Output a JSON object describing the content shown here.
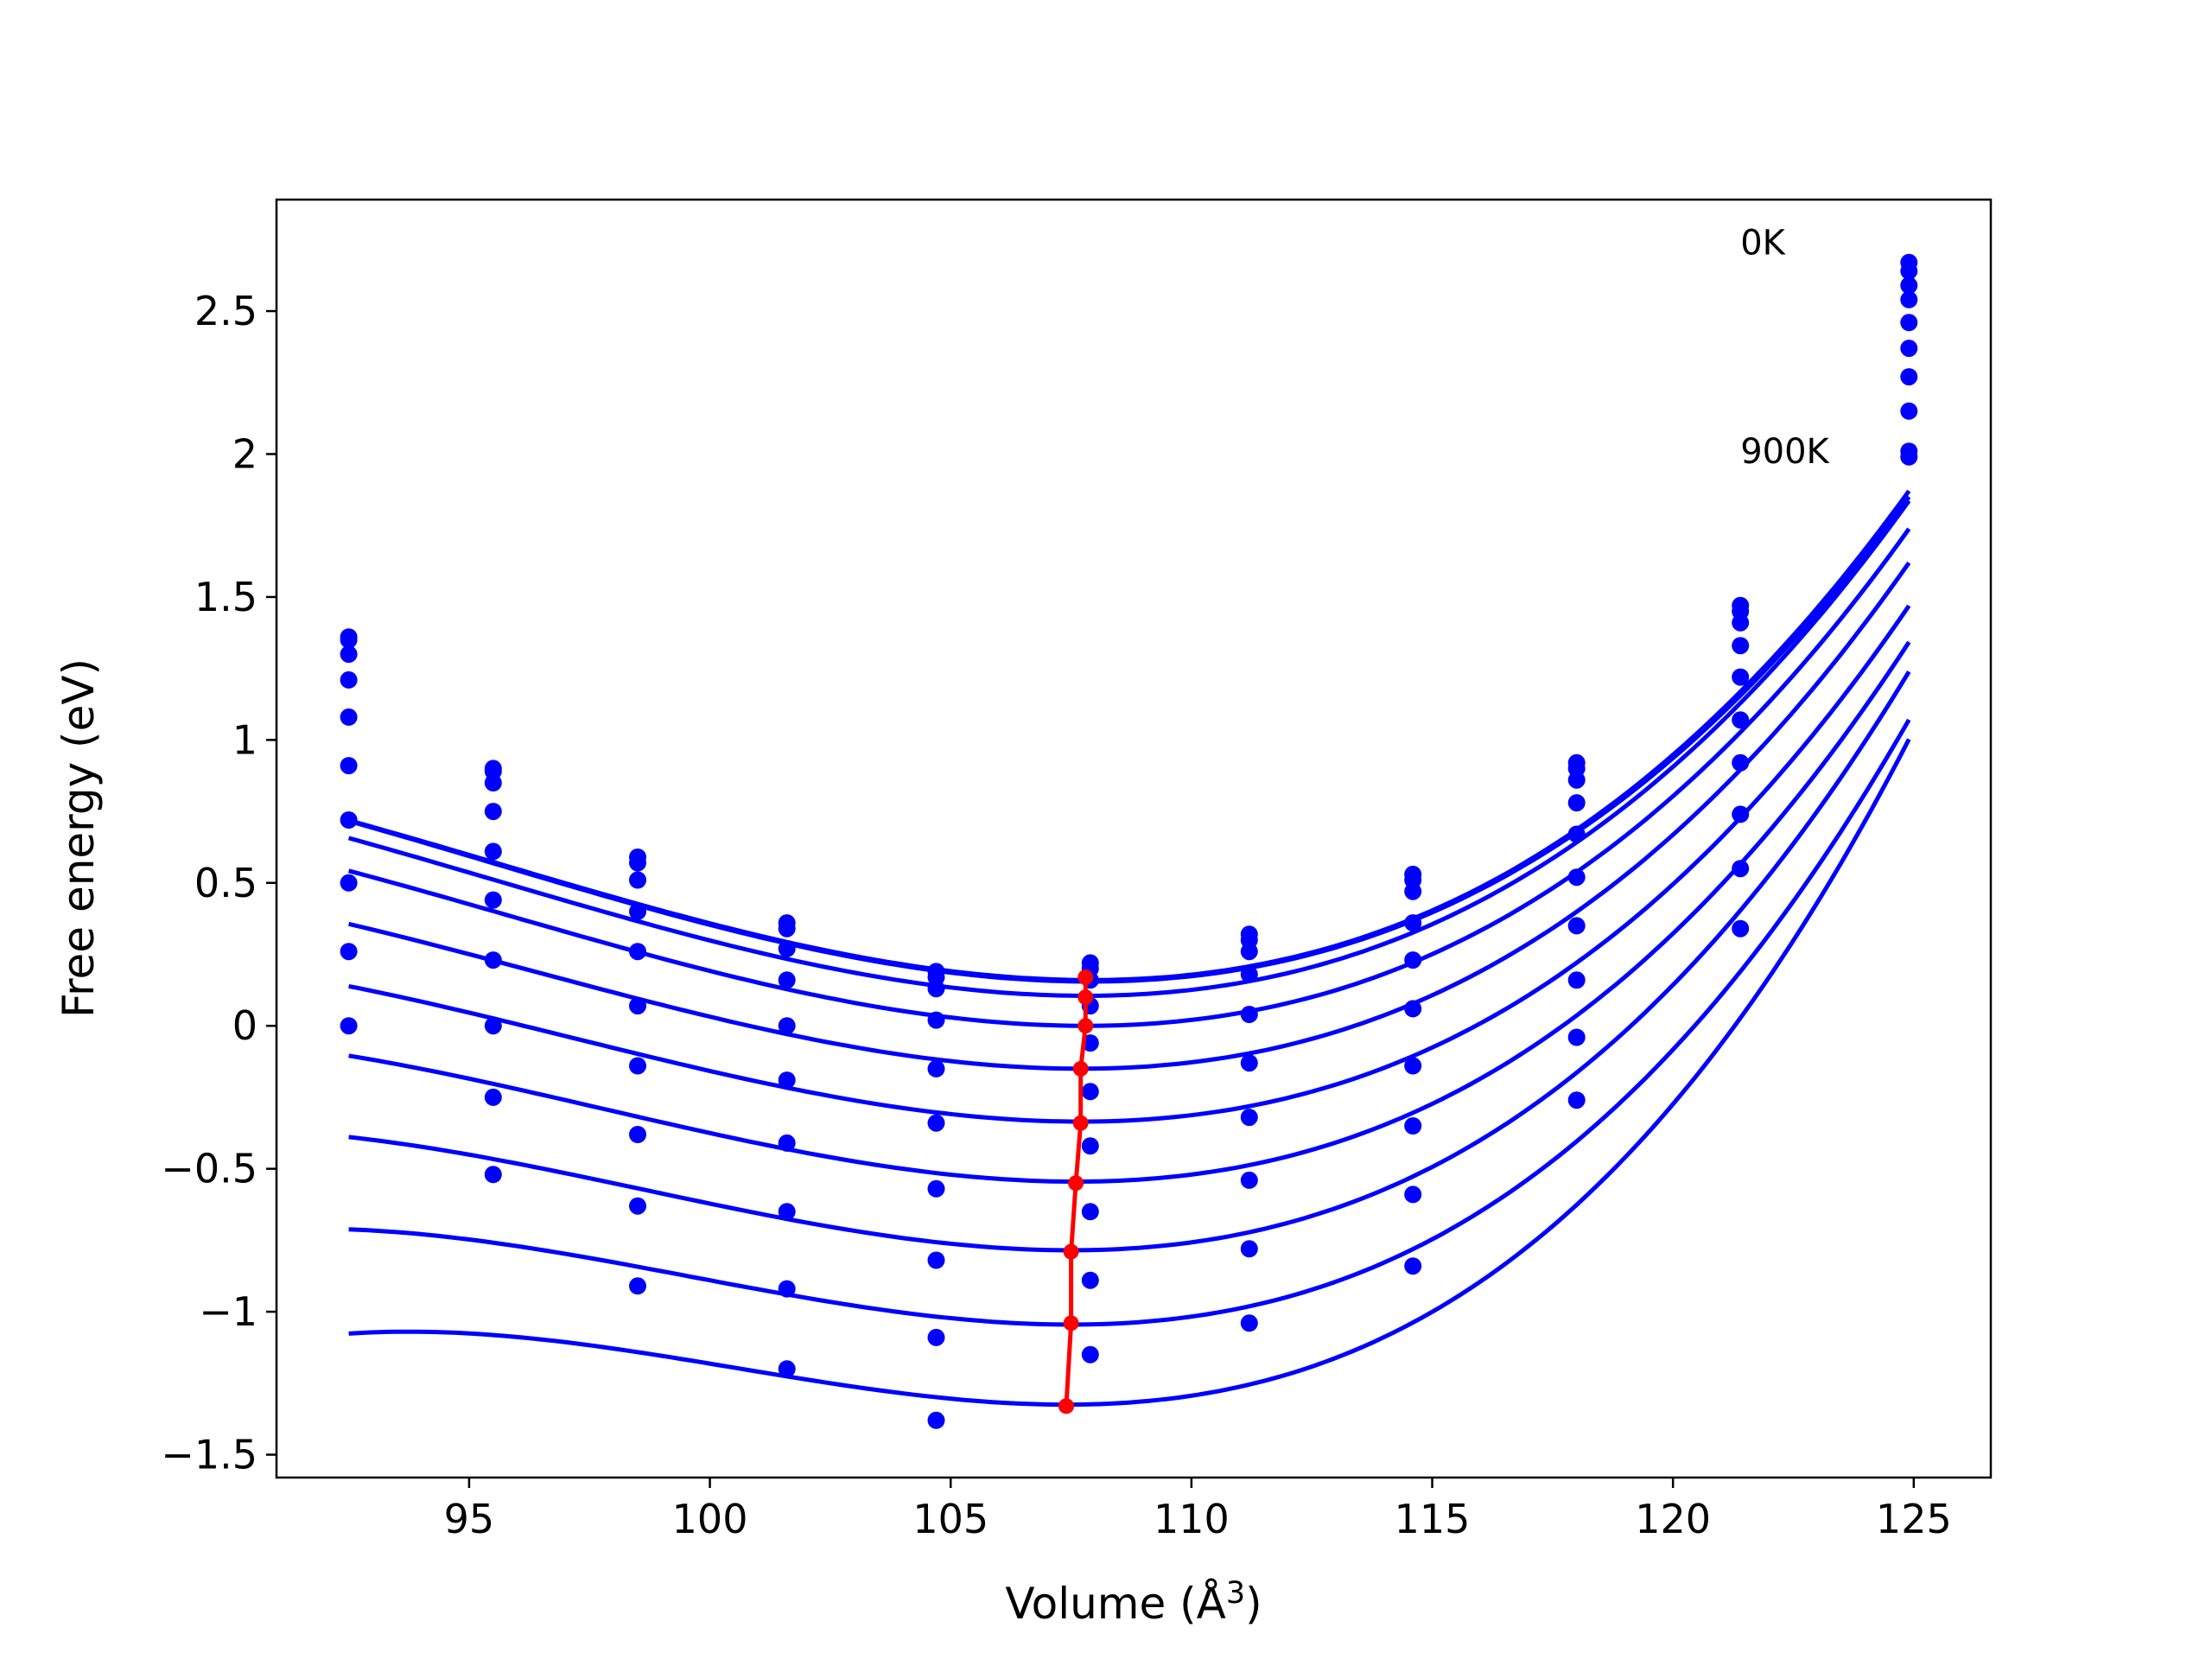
{
  "chart_data": {
    "type": "scatter",
    "title": "",
    "xlabel": "Volume (Å",
    "xlabel_sup": "3",
    "xlabel_close": ")",
    "ylabel": "Free energy (eV)",
    "xlim": [
      91.0,
      126.6
    ],
    "ylim": [
      -1.58,
      2.89
    ],
    "xticks": [
      95,
      100,
      105,
      110,
      115,
      120,
      125
    ],
    "yticks": [
      -1.5,
      -1.0,
      -0.5,
      0.0,
      0.5,
      1.0,
      1.5,
      2.0,
      2.5
    ],
    "grid": false,
    "colors": {
      "points": "#0000ff",
      "curves": "#0000ff",
      "minimum_path": "#ff0000"
    },
    "annotations": [
      {
        "text": "0K",
        "x": 121.4,
        "y": 2.74
      },
      {
        "text": "900K",
        "x": 121.4,
        "y": 2.01
      }
    ],
    "x": [
      92.5,
      95.5,
      98.5,
      101.6,
      104.7,
      107.9,
      111.2,
      114.6,
      118.0,
      121.4,
      124.9
    ],
    "series": [
      {
        "y": [
          1.36,
          0.9,
          0.59,
          0.36,
          0.19,
          0.22,
          0.32,
          0.53,
          0.92,
          1.47,
          2.67
        ]
      },
      {
        "y": [
          1.35,
          0.89,
          0.57,
          0.34,
          0.17,
          0.2,
          0.3,
          0.51,
          0.9,
          1.45,
          2.64
        ]
      },
      {
        "y": [
          1.3,
          0.85,
          0.51,
          0.27,
          0.13,
          0.16,
          0.26,
          0.47,
          0.86,
          1.41,
          2.59
        ]
      },
      {
        "y": [
          1.21,
          0.75,
          0.4,
          0.16,
          0.02,
          0.07,
          0.18,
          0.36,
          0.78,
          1.33,
          2.54
        ]
      },
      {
        "y": [
          1.08,
          0.61,
          0.26,
          0.0,
          -0.15,
          -0.06,
          0.04,
          0.23,
          0.67,
          1.22,
          2.46
        ]
      },
      {
        "y": [
          0.91,
          0.44,
          0.07,
          -0.19,
          -0.34,
          -0.23,
          -0.13,
          0.06,
          0.52,
          1.07,
          2.37
        ]
      },
      {
        "y": [
          0.72,
          0.23,
          -0.14,
          -0.41,
          -0.57,
          -0.42,
          -0.32,
          -0.14,
          0.35,
          0.92,
          2.27
        ]
      },
      {
        "y": [
          0.5,
          0.0,
          -0.38,
          -0.65,
          -0.82,
          -0.65,
          -0.54,
          -0.35,
          0.16,
          0.74,
          2.15
        ]
      },
      {
        "y": [
          0.26,
          -0.25,
          -0.63,
          -0.92,
          -1.09,
          -0.89,
          -0.78,
          -0.59,
          -0.04,
          0.55,
          2.01
        ]
      },
      {
        "y": [
          0.0,
          -0.52,
          -0.91,
          -1.2,
          -1.38,
          -1.15,
          -1.04,
          -0.84,
          -0.26,
          0.34,
          1.99
        ]
      }
    ],
    "fits": [
      {
        "v0": 107.9,
        "e0": 0.16,
        "a": 0.00405,
        "b": 0.00011,
        "xmax": 124.9
      },
      {
        "v0": 107.9,
        "e0": 0.155,
        "a": 0.00403,
        "b": 0.000108,
        "xmax": 124.9
      },
      {
        "v0": 107.8,
        "e0": 0.105,
        "a": 0.00404,
        "b": 0.00011,
        "xmax": 124.9
      },
      {
        "v0": 107.8,
        "e0": 0.0,
        "a": 0.00403,
        "b": 0.000112,
        "xmax": 124.9
      },
      {
        "v0": 107.7,
        "e0": -0.15,
        "a": 0.00397,
        "b": 0.000117,
        "xmax": 124.9
      },
      {
        "v0": 107.7,
        "e0": -0.335,
        "a": 0.00395,
        "b": 0.000125,
        "xmax": 124.9
      },
      {
        "v0": 107.6,
        "e0": -0.545,
        "a": 0.00397,
        "b": 0.000135,
        "xmax": 124.9
      },
      {
        "v0": 107.5,
        "e0": -0.785,
        "a": 0.00404,
        "b": 0.000152,
        "xmax": 124.9
      },
      {
        "v0": 107.5,
        "e0": -1.045,
        "a": 0.00403,
        "b": 0.00017,
        "xmax": 124.9
      },
      {
        "v0": 107.4,
        "e0": -1.325,
        "a": 0.0041,
        "b": 0.0002,
        "xmax": 124.9
      }
    ],
    "minimum_path": {
      "x": [
        107.8,
        107.8,
        107.8,
        107.7,
        107.7,
        107.6,
        107.5,
        107.5,
        107.4,
        107.4
      ],
      "y": [
        0.17,
        0.1,
        0.0,
        -0.15,
        -0.34,
        -0.55,
        -0.79,
        -1.04,
        -1.33,
        -1.33
      ]
    }
  }
}
